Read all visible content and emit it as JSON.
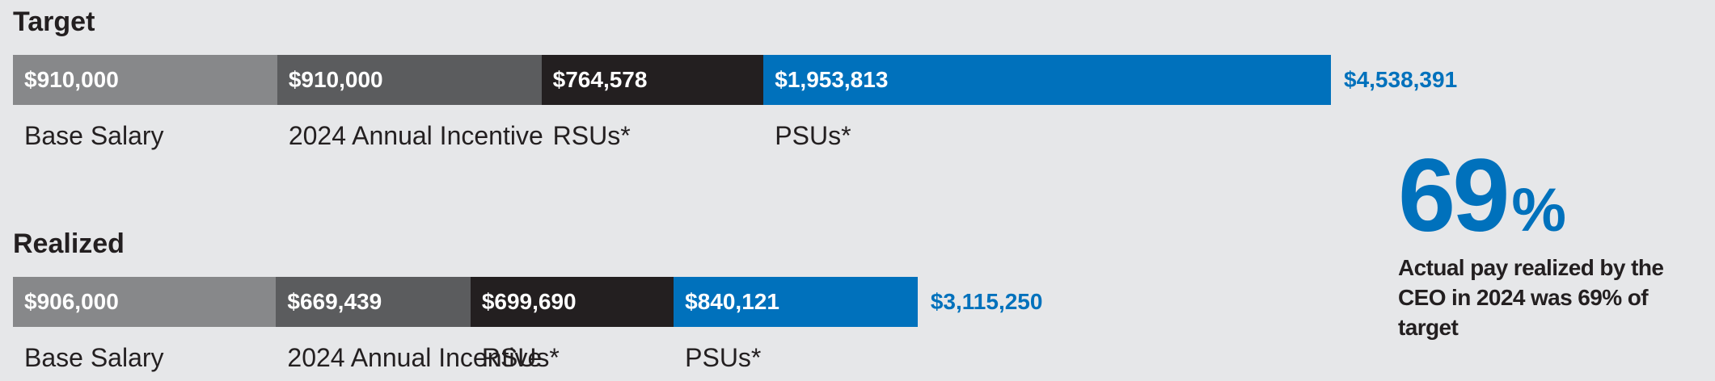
{
  "chart_data": [
    {
      "type": "stacked_bar",
      "title": "Target",
      "series": [
        {
          "name": "Base Salary",
          "color": "#87888a",
          "values": [
            910000
          ],
          "value_labels": [
            "$910,000"
          ]
        },
        {
          "name": "2024 Annual Incentive",
          "color": "#5b5c5e",
          "values": [
            910000
          ],
          "value_labels": [
            "$910,000"
          ]
        },
        {
          "name": "RSUs*",
          "color": "#231f20",
          "values": [
            764578
          ],
          "value_labels": [
            "$764,578"
          ]
        },
        {
          "name": "PSUs*",
          "color": "#0071bc",
          "values": [
            1953813
          ],
          "value_labels": [
            "$1,953,813"
          ]
        }
      ],
      "total": 4538391,
      "total_label": "$4,538,391",
      "xlim": [
        0,
        4538391
      ]
    },
    {
      "type": "stacked_bar",
      "title": "Realized",
      "series": [
        {
          "name": "Base Salary",
          "color": "#87888a",
          "values": [
            906000
          ],
          "value_labels": [
            "$906,000"
          ]
        },
        {
          "name": "2024 Annual Incentive",
          "color": "#5b5c5e",
          "values": [
            669439
          ],
          "value_labels": [
            "$669,439"
          ]
        },
        {
          "name": "RSUs*",
          "color": "#231f20",
          "values": [
            699690
          ],
          "value_labels": [
            "$699,690"
          ]
        },
        {
          "name": "PSUs*",
          "color": "#0071bc",
          "values": [
            840121
          ],
          "value_labels": [
            "$840,121"
          ]
        }
      ],
      "total": 3115250,
      "total_label": "$3,115,250",
      "xlim": [
        0,
        4538391
      ]
    }
  ],
  "callout": {
    "number": "69",
    "unit": "%",
    "text": "Actual pay realized by the CEO in 2024 was 69% of target"
  }
}
